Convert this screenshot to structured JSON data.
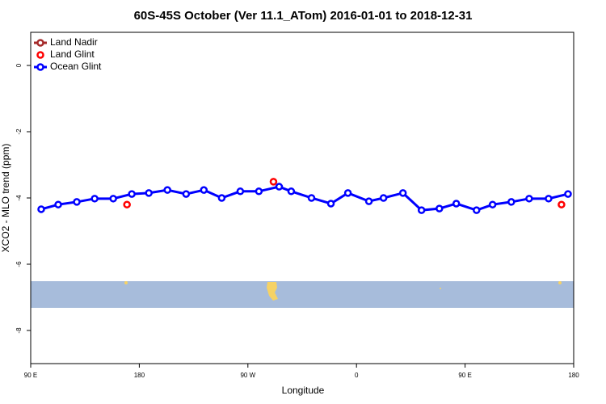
{
  "chart_data": {
    "type": "line",
    "title": "60S-45S October (Ver 11.1_ATom)   2016-01-01 to 2018-12-31",
    "x_label": "Longitude",
    "y_label": "XCO2 - MLO trend (ppm)",
    "xlim": [
      90,
      540
    ],
    "xticks": [
      {
        "value": 90,
        "label": "90 E"
      },
      180,
      {
        "value": 270,
        "label": "90 W"
      },
      {
        "value": 360,
        "label": "0"
      },
      {
        "value": 450,
        "label": "90 E"
      },
      {
        "value": 540,
        "label": "180"
      }
    ],
    "ylim": [
      -9,
      1
    ],
    "yticks": [
      0,
      -2,
      -4,
      -6,
      -8
    ],
    "legend": "top-left",
    "series": [
      {
        "name": "Land Nadir",
        "color": "#a52a2a",
        "line": true,
        "x": [],
        "values": []
      },
      {
        "name": "Land Glint",
        "color": "#ff0000",
        "line": false,
        "x": [
          169.8,
          291.2,
          529.9
        ],
        "values": [
          -4.2,
          -3.51,
          -4.2
        ]
      },
      {
        "name": "Ocean Glint",
        "color": "#0000ff",
        "line": true,
        "x": [
          98.7,
          112.8,
          128.2,
          143,
          158.4,
          173.8,
          187.9,
          203.3,
          218.8,
          233.5,
          248.3,
          263.7,
          279.1,
          295.9,
          305.9,
          322.7,
          338.8,
          352.9,
          370.3,
          382.4,
          398.5,
          413.9,
          428.7,
          442.7,
          459.5,
          472.8,
          488.3,
          503.1,
          519.2,
          535.3
        ],
        "values": [
          -4.34,
          -4.2,
          -4.12,
          -4.02,
          -4.02,
          -3.88,
          -3.85,
          -3.76,
          -3.88,
          -3.76,
          -4.0,
          -3.8,
          -3.8,
          -3.66,
          -3.8,
          -4.0,
          -4.17,
          -3.85,
          -4.1,
          -4.0,
          -3.85,
          -4.37,
          -4.32,
          -4.17,
          -4.37,
          -4.2,
          -4.12,
          -4.02,
          -4.02,
          -3.88
        ]
      }
    ]
  }
}
